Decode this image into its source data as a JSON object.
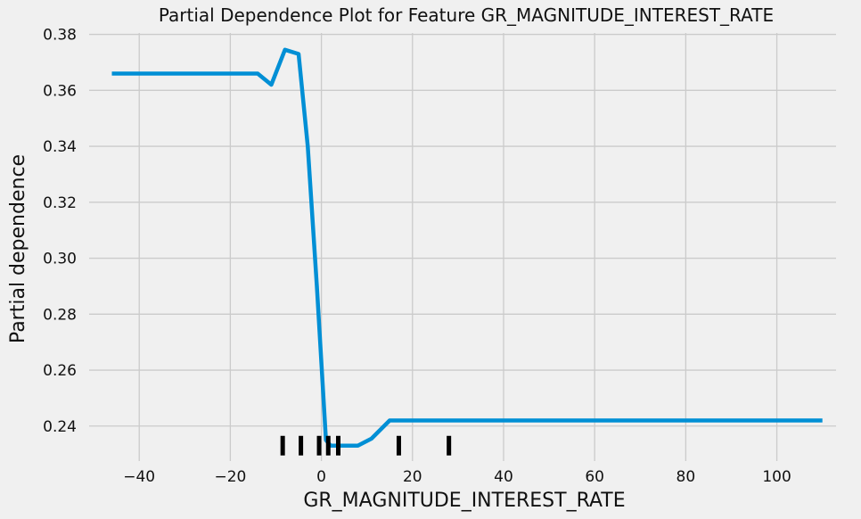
{
  "chart_data": {
    "type": "line",
    "title": "Partial Dependence Plot for Feature GR_MAGNITUDE_INTEREST_RATE",
    "xlabel": "GR_MAGNITUDE_INTEREST_RATE",
    "ylabel": "Partial dependence",
    "xlim": [
      -51,
      113
    ],
    "ylim": [
      0.2275,
      0.3805
    ],
    "xticks": [
      -40,
      -20,
      0,
      20,
      40,
      60,
      80,
      100
    ],
    "xtick_labels": [
      "−40",
      "−20",
      "0",
      "20",
      "40",
      "60",
      "80",
      "100"
    ],
    "yticks": [
      0.24,
      0.26,
      0.28,
      0.3,
      0.32,
      0.34,
      0.36,
      0.38
    ],
    "ytick_labels": [
      "0.24",
      "0.26",
      "0.28",
      "0.30",
      "0.32",
      "0.34",
      "0.36",
      "0.38"
    ],
    "grid": true,
    "line_color": "#008fd5",
    "series": [
      {
        "x": [
          -46,
          -14,
          -11,
          -8,
          -5,
          -3,
          -1,
          1,
          2,
          4,
          8,
          11,
          15,
          110
        ],
        "y": [
          0.366,
          0.366,
          0.362,
          0.3745,
          0.373,
          0.34,
          0.29,
          0.235,
          0.233,
          0.233,
          0.233,
          0.2355,
          0.242,
          0.242
        ]
      }
    ],
    "rug": {
      "x": [
        -8.5,
        -4.5,
        -0.5,
        1.5,
        3.7,
        17,
        28
      ],
      "y_range": [
        0.2295,
        0.2365
      ]
    }
  }
}
